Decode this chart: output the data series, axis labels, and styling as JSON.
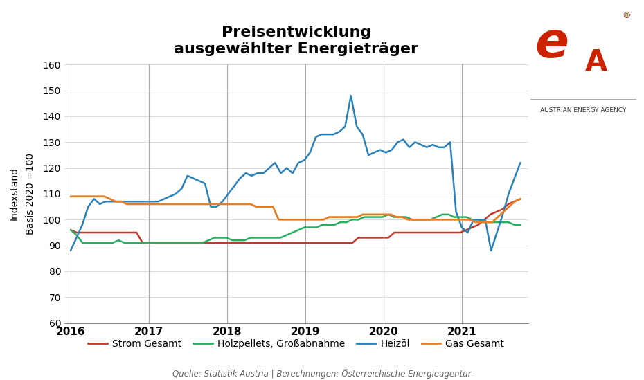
{
  "title": "Preisentwicklung\nausgewählter Energieträger",
  "ylabel": "Indexstand\nBasis 2020 =100",
  "source_text": "Quelle: Statistik Austria | Berechnungen: Österreichische Energieagentur",
  "ylim": [
    60,
    160
  ],
  "yticks": [
    60,
    70,
    80,
    90,
    100,
    110,
    120,
    130,
    140,
    150,
    160
  ],
  "year_lines": [
    2017,
    2018,
    2019,
    2020,
    2021
  ],
  "xtick_labels": [
    "2016",
    "2017",
    "2018",
    "2019",
    "2020",
    "2021"
  ],
  "xtick_positions": [
    2016,
    2017,
    2018,
    2019,
    2020,
    2021
  ],
  "xlim_start": 2015.92,
  "xlim_end": 2021.85,
  "x_start": 2016.0,
  "x_end": 2021.75,
  "series": {
    "Strom Gesamt": {
      "color": "#C0392B",
      "linewidth": 1.8,
      "values": [
        96,
        95,
        95,
        95,
        95,
        95,
        95,
        95,
        95,
        95,
        95,
        95,
        91,
        91,
        91,
        91,
        91,
        91,
        91,
        91,
        91,
        91,
        91,
        91,
        91,
        91,
        91,
        91,
        91,
        91,
        91,
        91,
        91,
        91,
        91,
        91,
        91,
        91,
        91,
        91,
        91,
        91,
        91,
        91,
        91,
        91,
        91,
        91,
        93,
        93,
        93,
        93,
        93,
        93,
        95,
        95,
        95,
        95,
        95,
        95,
        95,
        95,
        95,
        95,
        95,
        95,
        96,
        97,
        98,
        100,
        102,
        103,
        104,
        106,
        107,
        108
      ]
    },
    "Holzpellets, Großabnahme": {
      "color": "#27AE60",
      "linewidth": 1.8,
      "values": [
        96,
        94,
        91,
        91,
        91,
        91,
        91,
        91,
        92,
        91,
        91,
        91,
        91,
        91,
        91,
        91,
        91,
        91,
        91,
        91,
        91,
        91,
        91,
        92,
        93,
        93,
        93,
        92,
        92,
        92,
        93,
        93,
        93,
        93,
        93,
        93,
        94,
        95,
        96,
        97,
        97,
        97,
        98,
        98,
        98,
        99,
        99,
        100,
        100,
        101,
        101,
        101,
        101,
        102,
        101,
        101,
        101,
        100,
        100,
        100,
        100,
        101,
        102,
        102,
        101,
        101,
        101,
        100,
        100,
        99,
        99,
        99,
        99,
        99,
        98,
        98
      ]
    },
    "Heizöl": {
      "color": "#2980B9",
      "linewidth": 1.8,
      "values": [
        88,
        93,
        98,
        105,
        108,
        106,
        107,
        107,
        107,
        107,
        107,
        107,
        107,
        107,
        107,
        107,
        108,
        109,
        110,
        112,
        117,
        116,
        115,
        114,
        105,
        105,
        107,
        110,
        113,
        116,
        118,
        117,
        118,
        118,
        120,
        122,
        118,
        120,
        118,
        122,
        123,
        126,
        132,
        133,
        133,
        133,
        134,
        136,
        148,
        136,
        133,
        125,
        126,
        127,
        126,
        127,
        130,
        131,
        128,
        130,
        129,
        128,
        129,
        128,
        128,
        130,
        103,
        97,
        95,
        100,
        100,
        100,
        88,
        95,
        102,
        110,
        116,
        122
      ]
    },
    "Gas Gesamt": {
      "color": "#E67E22",
      "linewidth": 2.0,
      "values": [
        109,
        109,
        109,
        109,
        109,
        109,
        109,
        108,
        107,
        107,
        106,
        106,
        106,
        106,
        106,
        106,
        106,
        106,
        106,
        106,
        106,
        106,
        106,
        106,
        106,
        106,
        106,
        106,
        106,
        106,
        106,
        106,
        106,
        105,
        105,
        105,
        105,
        100,
        100,
        100,
        100,
        100,
        100,
        100,
        100,
        100,
        101,
        101,
        101,
        101,
        101,
        101,
        102,
        102,
        102,
        102,
        102,
        102,
        101,
        101,
        100,
        100,
        100,
        100,
        100,
        100,
        100,
        100,
        100,
        100,
        100,
        100,
        99,
        99,
        99,
        99,
        101,
        103,
        105,
        107,
        108
      ]
    }
  },
  "background_color": "#FFFFFF",
  "grid_color": "#CCCCCC",
  "title_fontsize": 16,
  "legend_fontsize": 10,
  "axis_fontsize": 10,
  "source_fontsize": 8.5
}
